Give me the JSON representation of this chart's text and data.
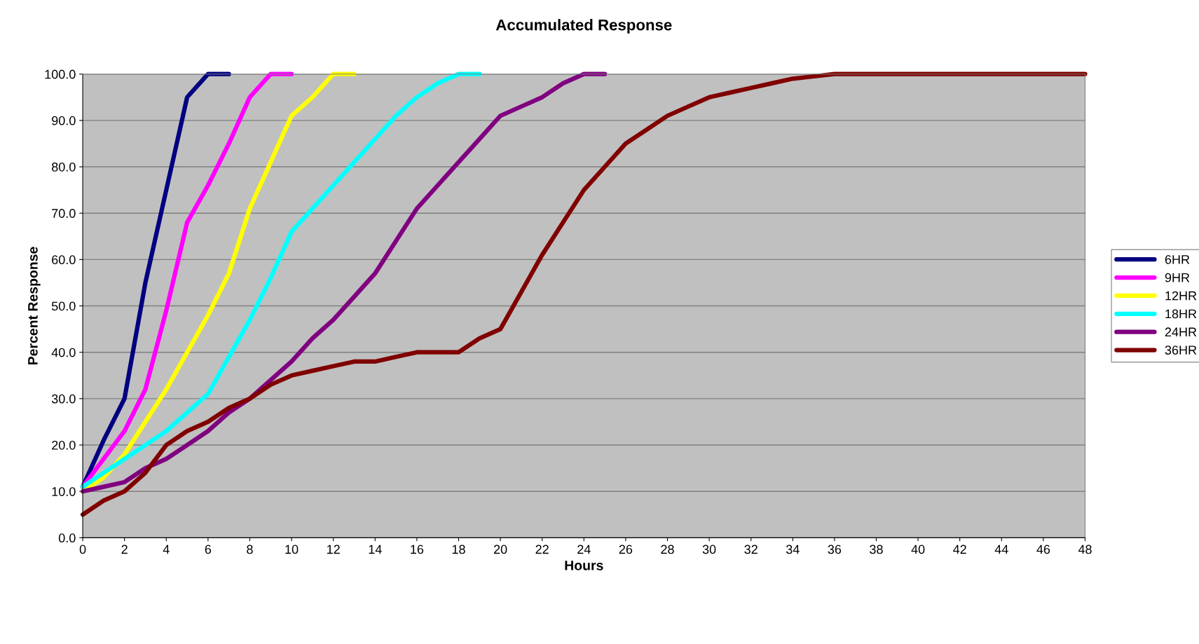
{
  "chart_data": {
    "type": "line",
    "title": "Accumulated Response",
    "xlabel": "Hours",
    "ylabel": "Percent Response",
    "x": [
      0,
      1,
      2,
      3,
      4,
      5,
      6,
      7,
      8,
      9,
      10,
      11,
      12,
      13,
      14,
      15,
      16,
      17,
      18,
      19,
      20,
      21,
      22,
      23,
      24,
      25,
      26,
      27,
      28,
      29,
      30,
      31,
      32,
      33,
      34,
      35,
      36,
      37,
      38,
      39,
      40,
      41,
      42,
      43,
      44,
      45,
      46,
      47,
      48
    ],
    "series": [
      {
        "name": "6HR",
        "color": "#000080",
        "values": [
          11,
          21,
          30,
          55,
          75,
          95,
          100,
          100,
          null,
          null,
          null,
          null,
          null,
          null,
          null,
          null,
          null,
          null,
          null,
          null,
          null,
          null,
          null,
          null,
          null,
          null,
          null,
          null,
          null,
          null,
          null,
          null,
          null,
          null,
          null,
          null,
          null,
          null,
          null,
          null,
          null,
          null,
          null,
          null,
          null,
          null,
          null,
          null,
          null
        ]
      },
      {
        "name": "9HR",
        "color": "#ff00ff",
        "values": [
          11,
          17,
          23,
          32,
          49,
          68,
          76,
          85,
          95,
          100,
          100,
          null,
          null,
          null,
          null,
          null,
          null,
          null,
          null,
          null,
          null,
          null,
          null,
          null,
          null,
          null,
          null,
          null,
          null,
          null,
          null,
          null,
          null,
          null,
          null,
          null,
          null,
          null,
          null,
          null,
          null,
          null,
          null,
          null,
          null,
          null,
          null,
          null,
          null
        ]
      },
      {
        "name": "12HR",
        "color": "#ffff00",
        "values": [
          10,
          13,
          18,
          25,
          32,
          40,
          48,
          57,
          71,
          81,
          91,
          95,
          100,
          100,
          null,
          null,
          null,
          null,
          null,
          null,
          null,
          null,
          null,
          null,
          null,
          null,
          null,
          null,
          null,
          null,
          null,
          null,
          null,
          null,
          null,
          null,
          null,
          null,
          null,
          null,
          null,
          null,
          null,
          null,
          null,
          null,
          null,
          null,
          null
        ]
      },
      {
        "name": "18HR",
        "color": "#00ffff",
        "values": [
          11,
          14,
          17,
          20,
          23,
          27,
          31,
          39,
          47,
          56,
          66,
          71,
          76,
          81,
          86,
          91,
          95,
          98,
          100,
          100,
          null,
          null,
          null,
          null,
          null,
          null,
          null,
          null,
          null,
          null,
          null,
          null,
          null,
          null,
          null,
          null,
          null,
          null,
          null,
          null,
          null,
          null,
          null,
          null,
          null,
          null,
          null,
          null,
          null
        ]
      },
      {
        "name": "24HR",
        "color": "#800080",
        "values": [
          10,
          11,
          12,
          15,
          17,
          20,
          23,
          27,
          30,
          34,
          38,
          43,
          47,
          52,
          57,
          64,
          71,
          76,
          81,
          86,
          91,
          93,
          95,
          98,
          100,
          100,
          null,
          null,
          null,
          null,
          null,
          null,
          null,
          null,
          null,
          null,
          null,
          null,
          null,
          null,
          null,
          null,
          null,
          null,
          null,
          null,
          null,
          null,
          null
        ]
      },
      {
        "name": "36HR",
        "color": "#800000",
        "values": [
          5,
          8,
          10,
          14,
          20,
          23,
          25,
          28,
          30,
          33,
          35,
          36,
          37,
          38,
          38,
          39,
          40,
          40,
          40,
          43,
          45,
          53,
          61,
          68,
          75,
          80,
          85,
          88,
          91,
          93,
          95,
          96,
          97,
          98,
          99,
          99.5,
          100,
          100,
          100,
          100,
          100,
          100,
          100,
          100,
          100,
          100,
          100,
          100,
          100
        ]
      }
    ],
    "xlim": [
      0,
      48
    ],
    "xticks": [
      0,
      2,
      4,
      6,
      8,
      10,
      12,
      14,
      16,
      18,
      20,
      22,
      24,
      26,
      28,
      30,
      32,
      34,
      36,
      38,
      40,
      42,
      44,
      46,
      48
    ],
    "ylim": [
      0,
      100
    ],
    "yticks": [
      {
        "value": 0,
        "label": "0.0"
      },
      {
        "value": 10,
        "label": "10.0"
      },
      {
        "value": 20,
        "label": "20.0"
      },
      {
        "value": 30,
        "label": "30.0"
      },
      {
        "value": 40,
        "label": "40.0"
      },
      {
        "value": 50,
        "label": "50.0"
      },
      {
        "value": 60,
        "label": "60.0"
      },
      {
        "value": 70,
        "label": "70.0"
      },
      {
        "value": 80,
        "label": "80.0"
      },
      {
        "value": 90,
        "label": "90.0"
      },
      {
        "value": 100,
        "label": "100.0"
      }
    ],
    "grid": "y",
    "legend": "right",
    "marker": "none",
    "line_style": "solid"
  }
}
